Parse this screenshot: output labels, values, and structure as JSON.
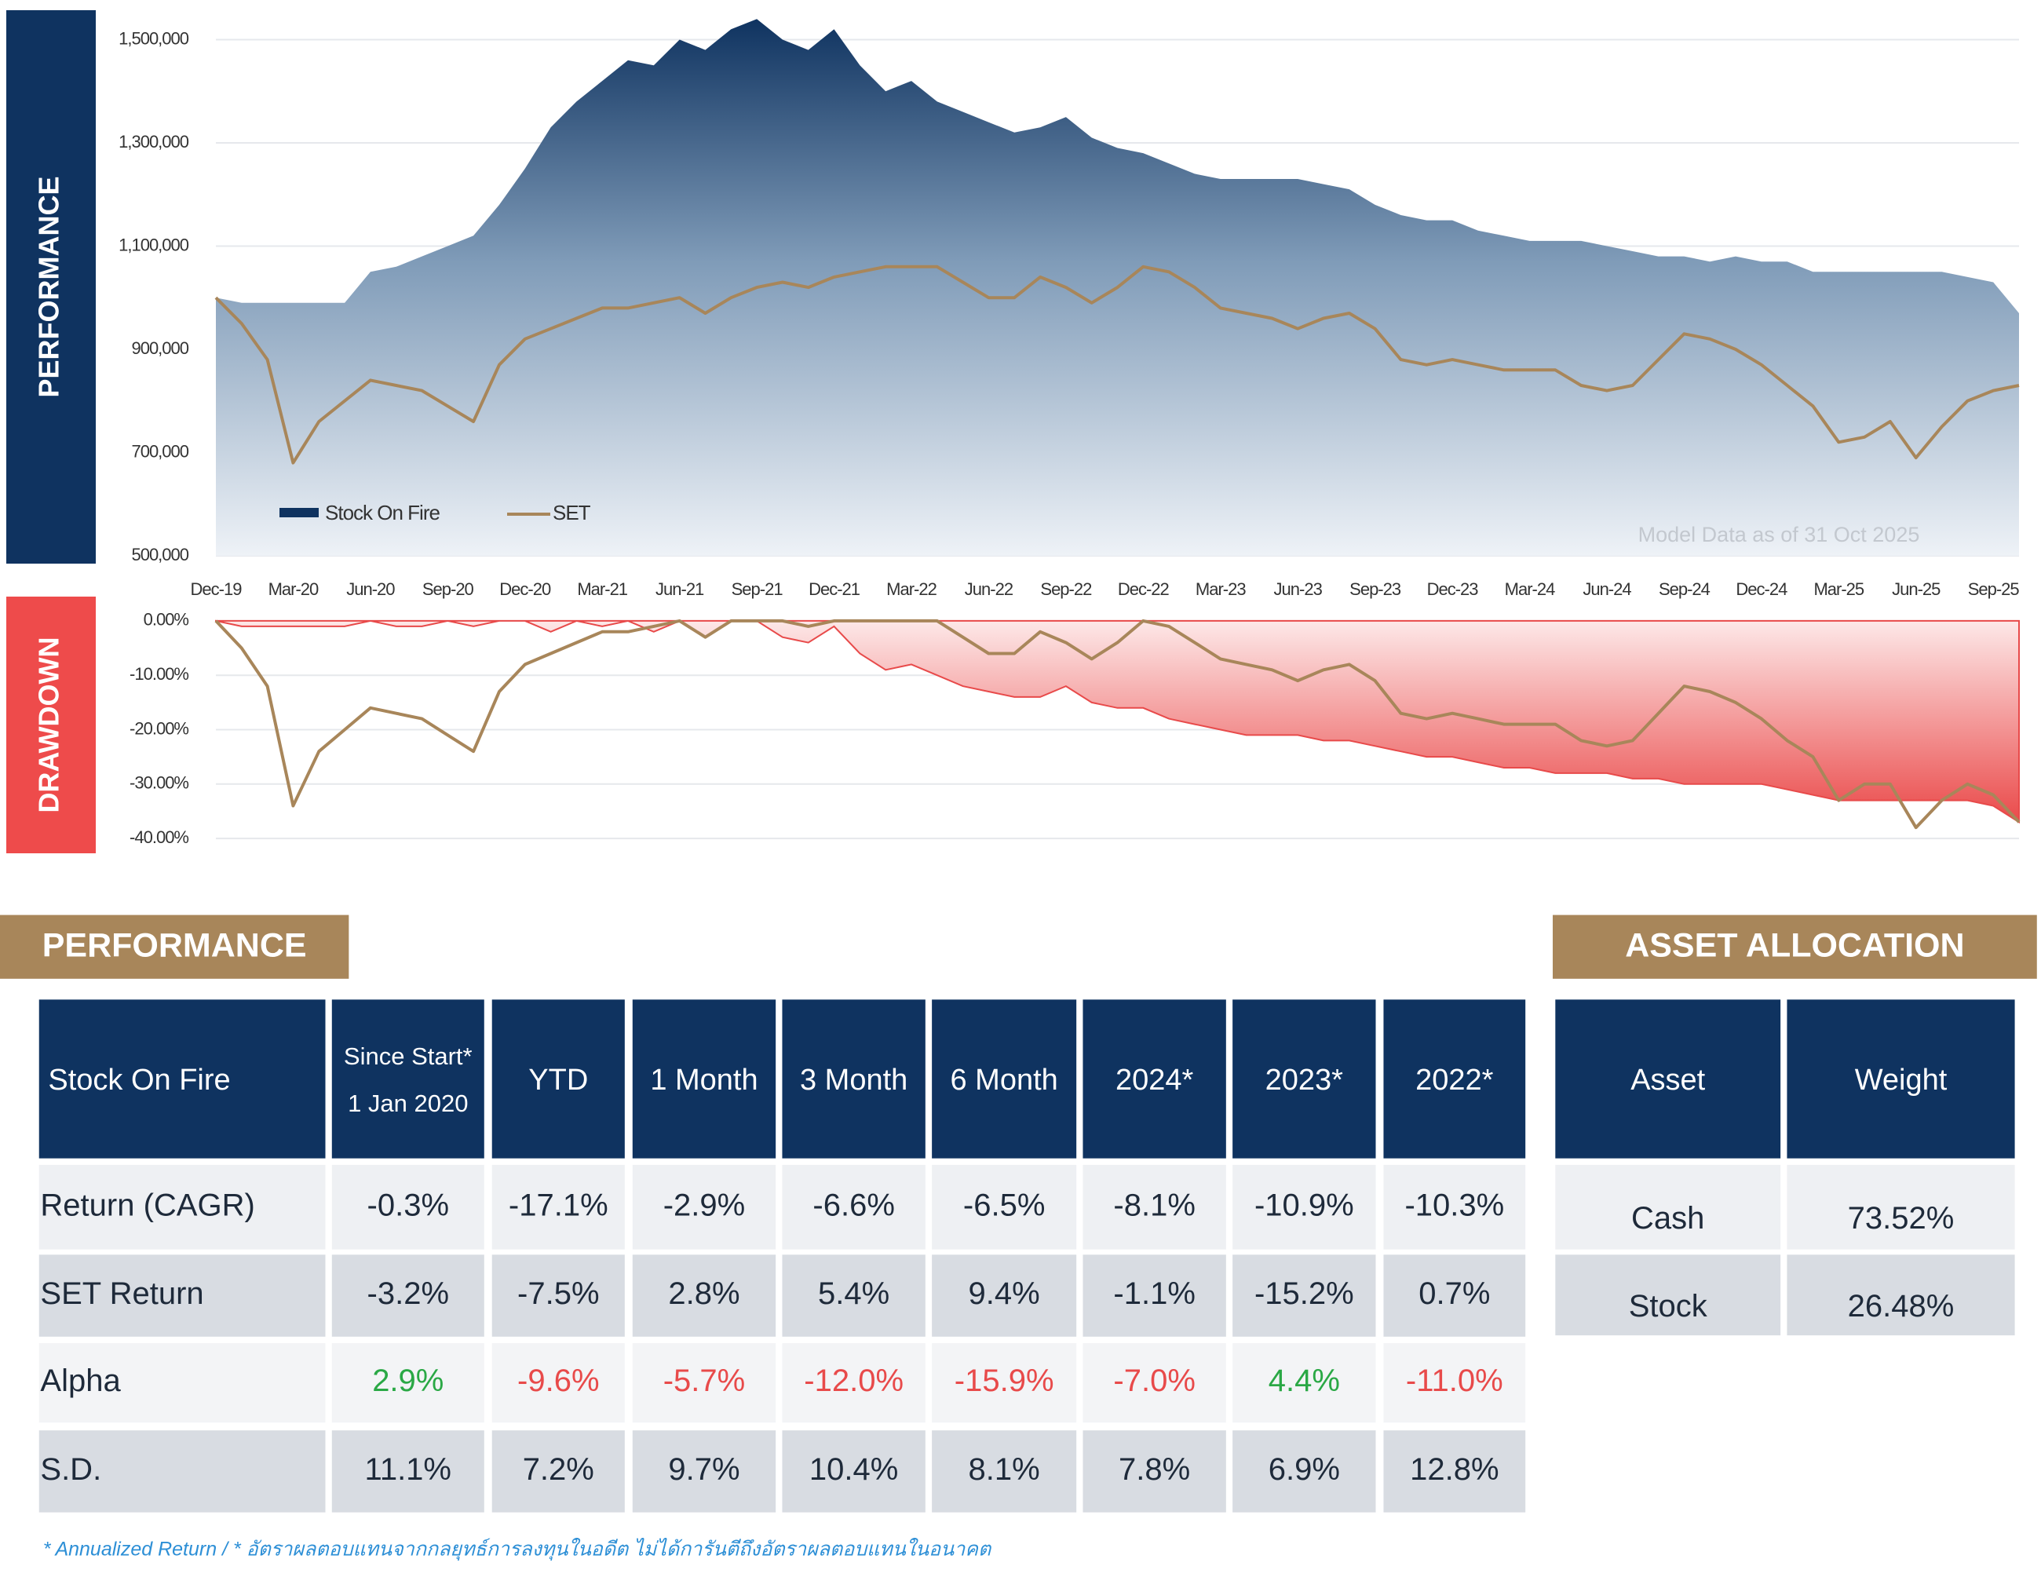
{
  "chart_data": [
    {
      "type": "area",
      "side_label": "PERFORMANCE",
      "categories": [
        "Dec-19",
        null,
        null,
        "Mar-20",
        null,
        null,
        "Jun-20",
        null,
        null,
        "Sep-20",
        null,
        null,
        "Dec-20",
        null,
        null,
        "Mar-21",
        null,
        null,
        "Jun-21",
        null,
        null,
        "Sep-21",
        null,
        null,
        "Dec-21",
        null,
        null,
        "Mar-22",
        null,
        null,
        "Jun-22",
        null,
        null,
        "Sep-22",
        null,
        null,
        "Dec-22",
        null,
        null,
        "Mar-23",
        null,
        null,
        "Jun-23",
        null,
        null,
        "Sep-23",
        null,
        null,
        "Dec-23",
        null,
        null,
        "Mar-24",
        null,
        null,
        "Jun-24",
        null,
        null,
        "Sep-24",
        null,
        null,
        "Dec-24",
        null,
        null,
        "Mar-25",
        null,
        null,
        "Jun-25",
        null,
        null,
        "Sep-25",
        null
      ],
      "series": [
        {
          "name": "Stock On Fire",
          "type": "area",
          "color": "#0f3360",
          "values": [
            1000000,
            990000,
            990000,
            990000,
            990000,
            990000,
            1050000,
            1060000,
            1080000,
            1100000,
            1120000,
            1180000,
            1250000,
            1330000,
            1380000,
            1420000,
            1460000,
            1450000,
            1500000,
            1480000,
            1520000,
            1540000,
            1500000,
            1480000,
            1520000,
            1450000,
            1400000,
            1420000,
            1380000,
            1360000,
            1340000,
            1320000,
            1330000,
            1350000,
            1310000,
            1290000,
            1280000,
            1260000,
            1240000,
            1230000,
            1230000,
            1230000,
            1230000,
            1220000,
            1210000,
            1180000,
            1160000,
            1150000,
            1150000,
            1130000,
            1120000,
            1110000,
            1110000,
            1110000,
            1100000,
            1090000,
            1080000,
            1080000,
            1070000,
            1080000,
            1070000,
            1070000,
            1050000,
            1050000,
            1050000,
            1050000,
            1050000,
            1050000,
            1040000,
            1030000,
            970000
          ]
        },
        {
          "name": "SET",
          "type": "line",
          "color": "#a8865a",
          "values": [
            1000000,
            950000,
            880000,
            680000,
            760000,
            800000,
            840000,
            830000,
            820000,
            790000,
            760000,
            870000,
            920000,
            940000,
            960000,
            980000,
            980000,
            990000,
            1000000,
            970000,
            1000000,
            1020000,
            1030000,
            1020000,
            1040000,
            1050000,
            1060000,
            1060000,
            1060000,
            1030000,
            1000000,
            1000000,
            1040000,
            1020000,
            990000,
            1020000,
            1060000,
            1050000,
            1020000,
            980000,
            970000,
            960000,
            940000,
            960000,
            970000,
            940000,
            880000,
            870000,
            880000,
            870000,
            860000,
            860000,
            860000,
            830000,
            820000,
            830000,
            880000,
            930000,
            920000,
            900000,
            870000,
            830000,
            790000,
            720000,
            730000,
            760000,
            690000,
            750000,
            800000,
            820000,
            830000
          ]
        }
      ],
      "ylim": [
        500000,
        1560000
      ],
      "yticks": [
        {
          "value": 500000,
          "label": "500,000"
        },
        {
          "value": 700000,
          "label": "700,000"
        },
        {
          "value": 900000,
          "label": "900,000"
        },
        {
          "value": 1100000,
          "label": "1,100,000"
        },
        {
          "value": 1300000,
          "label": "1,300,000"
        },
        {
          "value": 1500000,
          "label": "1,500,000"
        }
      ],
      "grid": true,
      "legend": "lower left",
      "annotation": "Model Data as of 31 Oct 2025"
    },
    {
      "type": "area",
      "side_label": "DRAWDOWN",
      "series": [
        {
          "type": "area",
          "color": "#e84a4a",
          "values": [
            0,
            -1,
            -1,
            -1,
            -1,
            -1,
            0,
            -1,
            -1,
            0,
            -1,
            0,
            0,
            -2,
            0,
            -1,
            0,
            -2,
            0,
            -3,
            0,
            0,
            -3,
            -4,
            -1,
            -6,
            -9,
            -8,
            -10,
            -12,
            -13,
            -14,
            -14,
            -12,
            -15,
            -16,
            -16,
            -18,
            -19,
            -20,
            -21,
            -21,
            -21,
            -22,
            -22,
            -23,
            -24,
            -25,
            -25,
            -26,
            -27,
            -27,
            -28,
            -28,
            -28,
            -29,
            -29,
            -30,
            -30,
            -30,
            -30,
            -31,
            -32,
            -33,
            -33,
            -33,
            -33,
            -33,
            -33,
            -34,
            -37
          ]
        },
        {
          "type": "line",
          "color": "#a8865a",
          "values": [
            0,
            -5,
            -12,
            -34,
            -24,
            -20,
            -16,
            -17,
            -18,
            -21,
            -24,
            -13,
            -8,
            -6,
            -4,
            -2,
            -2,
            -1,
            0,
            -3,
            0,
            0,
            0,
            -1,
            0,
            0,
            0,
            0,
            0,
            -3,
            -6,
            -6,
            -2,
            -4,
            -7,
            -4,
            0,
            -1,
            -4,
            -7,
            -8,
            -9,
            -11,
            -9,
            -8,
            -11,
            -17,
            -18,
            -17,
            -18,
            -19,
            -19,
            -19,
            -22,
            -23,
            -22,
            -17,
            -12,
            -13,
            -15,
            -18,
            -22,
            -25,
            -33,
            -30,
            -30,
            -38,
            -33,
            -30,
            -32,
            -37
          ]
        }
      ],
      "ylim": [
        -41,
        1
      ],
      "yticks": [
        {
          "value": 0,
          "label": "0.00%"
        },
        {
          "value": -10,
          "label": "-10.00%"
        },
        {
          "value": -20,
          "label": "-20.00%"
        },
        {
          "value": -30,
          "label": "-30.00%"
        },
        {
          "value": -40,
          "label": "-40.00%"
        }
      ],
      "grid": true
    }
  ],
  "performance_table": {
    "title": "PERFORMANCE",
    "header": [
      [
        "Stock On Fire"
      ],
      [
        "Since Start*",
        "1 Jan 2020"
      ],
      [
        "YTD"
      ],
      [
        "1 Month"
      ],
      [
        "3 Month"
      ],
      [
        "6 Month"
      ],
      [
        "2024*"
      ],
      [
        "2023*"
      ],
      [
        "2022*"
      ]
    ],
    "rows": [
      {
        "cells": [
          "Return (CAGR)",
          "-0.3%",
          "-17.1%",
          "-2.9%",
          "-6.6%",
          "-6.5%",
          "-8.1%",
          "-10.9%",
          "-10.3%"
        ]
      },
      {
        "cells": [
          "SET Return",
          "-3.2%",
          "-7.5%",
          "2.8%",
          "5.4%",
          "9.4%",
          "-1.1%",
          "-15.2%",
          "0.7%"
        ]
      },
      {
        "cells": [
          "Alpha",
          "2.9%",
          "-9.6%",
          "-5.7%",
          "-12.0%",
          "-15.9%",
          "-7.0%",
          "4.4%",
          "-11.0%"
        ],
        "colors": [
          "#1e2a3a",
          "#2aa845",
          "#e84a4a",
          "#e84a4a",
          "#e84a4a",
          "#e84a4a",
          "#e84a4a",
          "#2aa845",
          "#e84a4a"
        ]
      },
      {
        "cells": [
          "S.D.",
          "11.1%",
          "7.2%",
          "9.7%",
          "10.4%",
          "8.1%",
          "7.8%",
          "6.9%",
          "12.8%"
        ]
      }
    ]
  },
  "allocation_table": {
    "title": "ASSET ALLOCATION",
    "header": [
      "Asset",
      "Weight"
    ],
    "rows": [
      [
        "Cash",
        "73.52%"
      ],
      [
        "Stock",
        "26.48%"
      ]
    ]
  },
  "footnote": "* Annualized Return  /  * อัตราผลตอบแทนจากกลยุทธ์การลงทุนในอดีต ไม่ได้การันตีถึงอัตราผลตอบแทนในอนาคต"
}
